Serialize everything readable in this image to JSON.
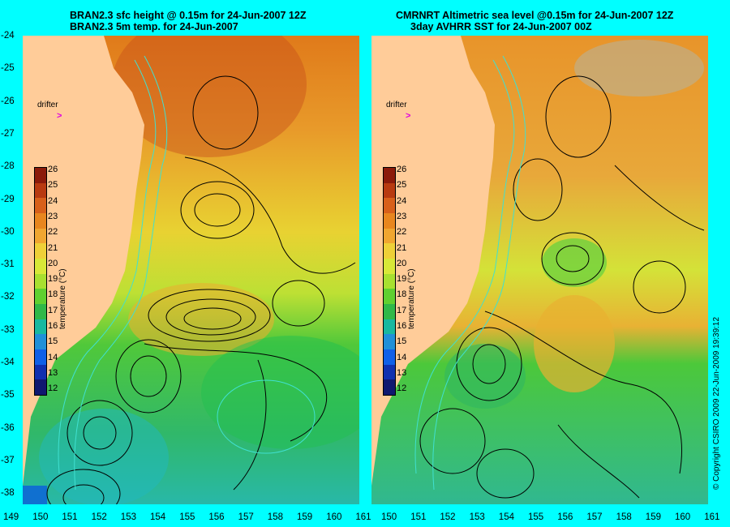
{
  "panels": [
    {
      "title_line1": "BRAN2.3 sfc height @ 0.15m for 24-Jun-2007 12Z",
      "title_line2": "BRAN2.3 5m temp. for 24-Jun-2007",
      "colorbar_label": "temperature (°C)",
      "drifter_label": "drifter"
    },
    {
      "title_line1": "CMRNRT Altimetric sea level  @0.15m  for 24-Jun-2007 12Z",
      "title_line2": "3day AVHRR SST for 24-Jun-2007 00Z",
      "colorbar_label": "temperature (°C)",
      "drifter_label": "drifter"
    }
  ],
  "y_ticks": [
    "-24",
    "-25",
    "-26",
    "-27",
    "-28",
    "-29",
    "-30",
    "-31",
    "-32",
    "-33",
    "-34",
    "-35",
    "-36",
    "-37",
    "-38"
  ],
  "x_ticks": [
    "149",
    "150",
    "151",
    "152",
    "153",
    "154",
    "155",
    "156",
    "157",
    "158",
    "159",
    "160",
    "161"
  ],
  "x_ticks_right": [
    "150",
    "151",
    "152",
    "153",
    "154",
    "155",
    "156",
    "157",
    "158",
    "159",
    "160",
    "161"
  ],
  "colorbar_ticks": [
    "26",
    "25",
    "24",
    "23",
    "22",
    "21",
    "20",
    "19",
    "18",
    "17",
    "16",
    "15",
    "14",
    "13",
    "12"
  ],
  "colorbar_colors": [
    "#8b1a0a",
    "#b83a10",
    "#d8601a",
    "#e8861e",
    "#f0a630",
    "#eed038",
    "#d8e838",
    "#a8e030",
    "#60d030",
    "#30b848",
    "#18b8a0",
    "#2090d8",
    "#1060e8",
    "#1030b0",
    "#101870"
  ],
  "copyright": "© Copyright CSIRO 2009   22-Jun-2009 19:39:12",
  "colors": {
    "background": "#00ffff",
    "land": "#ffcc99",
    "drifter": "#e000e0",
    "contour": "#000000",
    "isobath": "#40e0d0"
  }
}
